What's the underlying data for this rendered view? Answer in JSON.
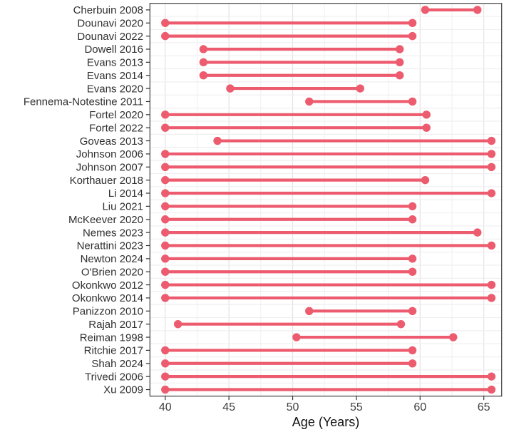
{
  "chart_data": {
    "type": "dumbbell",
    "title": "",
    "xlabel": "Age (Years)",
    "ylabel": "",
    "x_ticks": [
      40,
      45,
      50,
      55,
      60,
      65
    ],
    "x_minor_ticks": [
      42.5,
      47.5,
      52.5,
      57.5,
      62.5
    ],
    "xlim": [
      38.8,
      66.4
    ],
    "grid": true,
    "legend": "none",
    "point_color": "#EC5C6E",
    "line_color": "#EC5C6E",
    "studies": [
      {
        "label": "Cherbuin 2008",
        "start": 60.4,
        "end": 64.5
      },
      {
        "label": "Dounavi 2020",
        "start": 40.0,
        "end": 59.4
      },
      {
        "label": "Dounavi 2022",
        "start": 40.0,
        "end": 59.4
      },
      {
        "label": "Dowell 2016",
        "start": 43.0,
        "end": 58.4
      },
      {
        "label": "Evans 2013",
        "start": 43.0,
        "end": 58.4
      },
      {
        "label": "Evans 2014",
        "start": 43.0,
        "end": 58.4
      },
      {
        "label": "Evans 2020",
        "start": 45.1,
        "end": 55.3
      },
      {
        "label": "Fennema-Notestine 2011",
        "start": 51.3,
        "end": 59.4
      },
      {
        "label": "Fortel 2020",
        "start": 40.0,
        "end": 60.5
      },
      {
        "label": "Fortel 2022",
        "start": 40.0,
        "end": 60.5
      },
      {
        "label": "Goveas 2013",
        "start": 44.1,
        "end": 65.6
      },
      {
        "label": "Johnson 2006",
        "start": 40.0,
        "end": 65.6
      },
      {
        "label": "Johnson 2007",
        "start": 40.0,
        "end": 65.6
      },
      {
        "label": "Korthauer 2018",
        "start": 40.0,
        "end": 60.4
      },
      {
        "label": "Li 2014",
        "start": 40.0,
        "end": 65.6
      },
      {
        "label": "Liu 2021",
        "start": 40.0,
        "end": 59.4
      },
      {
        "label": "McKeever 2020",
        "start": 40.0,
        "end": 59.4
      },
      {
        "label": "Nemes 2023",
        "start": 40.0,
        "end": 64.5
      },
      {
        "label": "Nerattini 2023",
        "start": 40.0,
        "end": 65.6
      },
      {
        "label": "Newton 2024",
        "start": 40.0,
        "end": 59.4
      },
      {
        "label": "O'Brien 2020",
        "start": 40.0,
        "end": 59.4
      },
      {
        "label": "Okonkwo 2012",
        "start": 40.0,
        "end": 65.6
      },
      {
        "label": "Okonkwo 2014",
        "start": 40.0,
        "end": 65.6
      },
      {
        "label": "Panizzon 2010",
        "start": 51.3,
        "end": 59.4
      },
      {
        "label": "Rajah 2017",
        "start": 41.0,
        "end": 58.5
      },
      {
        "label": "Reiman 1998",
        "start": 50.3,
        "end": 62.6
      },
      {
        "label": "Ritchie 2017",
        "start": 40.0,
        "end": 59.4
      },
      {
        "label": "Shah 2024",
        "start": 40.0,
        "end": 59.4
      },
      {
        "label": "Trivedi 2006",
        "start": 40.0,
        "end": 65.6
      },
      {
        "label": "Xu 2009",
        "start": 40.0,
        "end": 65.6
      }
    ],
    "style_colors": {
      "panel_border": "#404040",
      "grid_major": "#e3e3e3",
      "grid_minor": "#efefef",
      "tick_mark": "#333333",
      "background": "#ffffff"
    }
  }
}
